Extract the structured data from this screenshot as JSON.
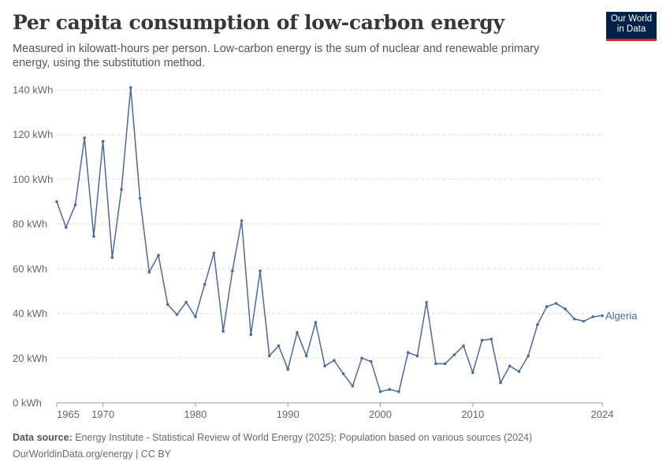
{
  "title": "Per capita consumption of low-carbon energy",
  "subtitle": "Measured in kilowatt-hours per person. Low-carbon energy is the sum of nuclear and renewable primary energy, using the substitution method.",
  "logo": {
    "line1": "Our World",
    "line2": "in Data"
  },
  "footer": {
    "source_label": "Data source:",
    "source_text": "Energy Institute - Statistical Review of World Energy (2025); Population based on various sources (2024)",
    "url_license": "OurWorldinData.org/energy | CC BY"
  },
  "colors": {
    "series": "#4c6a9c",
    "grid": "#dddddd",
    "axis": "#666666"
  },
  "chart_data": {
    "type": "line",
    "y_unit": "kWh",
    "ylim": [
      0,
      140
    ],
    "y_ticks": [
      0,
      20,
      40,
      60,
      80,
      100,
      120,
      140
    ],
    "y_tick_labels": [
      "0 kWh",
      "20 kWh",
      "40 kWh",
      "60 kWh",
      "80 kWh",
      "100 kWh",
      "120 kWh",
      "140 kWh"
    ],
    "x_ticks": [
      1965,
      1970,
      1980,
      1990,
      2000,
      2010,
      2024
    ],
    "xlim": [
      1965,
      2024
    ],
    "grid": "horizontal-dashed",
    "series": [
      {
        "name": "Algeria",
        "x": [
          1965,
          1966,
          1967,
          1968,
          1969,
          1970,
          1971,
          1972,
          1973,
          1974,
          1975,
          1976,
          1977,
          1978,
          1979,
          1980,
          1981,
          1982,
          1983,
          1984,
          1985,
          1986,
          1987,
          1988,
          1989,
          1990,
          1991,
          1992,
          1993,
          1994,
          1995,
          1996,
          1997,
          1998,
          1999,
          2000,
          2001,
          2002,
          2003,
          2004,
          2005,
          2006,
          2007,
          2008,
          2009,
          2010,
          2011,
          2012,
          2013,
          2014,
          2015,
          2016,
          2017,
          2018,
          2019,
          2020,
          2021,
          2022,
          2023,
          2024
        ],
        "values": [
          90,
          78.5,
          88.5,
          118.5,
          74.5,
          117,
          65,
          95.5,
          141,
          91.5,
          58.5,
          66,
          44,
          39.5,
          45,
          38.5,
          53,
          67,
          32,
          59,
          81.5,
          30.5,
          59,
          21,
          25.5,
          15,
          31.5,
          21,
          36,
          16.5,
          19,
          13,
          7.5,
          20,
          18.5,
          5,
          6,
          5,
          22.5,
          21,
          45,
          17.5,
          17.5,
          21.5,
          25.5,
          13.5,
          28,
          28.5,
          9,
          16.5,
          14,
          21,
          35,
          43,
          44.5,
          42,
          37.5,
          36.5,
          38.5,
          39
        ]
      }
    ]
  }
}
